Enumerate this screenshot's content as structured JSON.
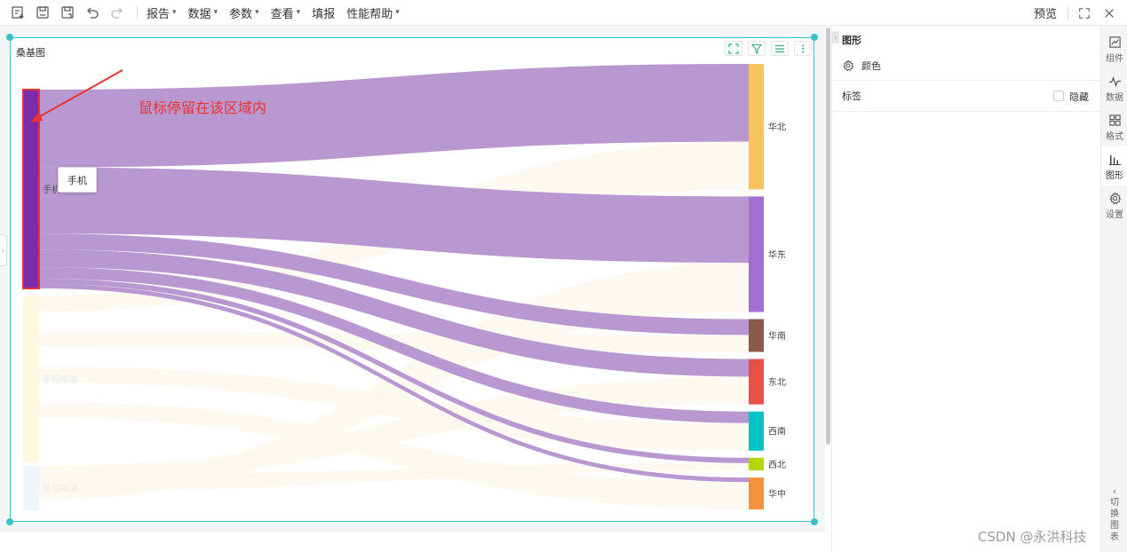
{
  "toolbar": {
    "icons": [
      "new-report-icon",
      "save-icon",
      "save-as-icon",
      "undo-icon",
      "redo-icon"
    ],
    "menus": [
      {
        "label": "报告",
        "has_dropdown": true
      },
      {
        "label": "数据",
        "has_dropdown": true
      },
      {
        "label": "参数",
        "has_dropdown": true
      },
      {
        "label": "查看",
        "has_dropdown": true
      },
      {
        "label": "填报",
        "has_dropdown": false
      },
      {
        "label": "性能帮助",
        "has_dropdown": true
      }
    ],
    "preview_label": "预览",
    "right_icons": [
      "fullscreen-icon",
      "close-icon"
    ]
  },
  "widget": {
    "title": "桑基图",
    "tools": [
      "expand-icon",
      "filter-icon",
      "list-icon",
      "more-icon"
    ],
    "tooltip": "手机",
    "annotation": "鼠标停留在该区域内"
  },
  "chart_data": {
    "type": "sankey",
    "title": "桑基图",
    "sources": [
      {
        "name": "手机",
        "color": "#7b2cad",
        "highlighted": true
      },
      {
        "name": "平板电脑",
        "color": "#fff8e1",
        "highlighted": false
      },
      {
        "name": "移动电源",
        "color": "#eef5fb",
        "highlighted": false
      }
    ],
    "targets": [
      {
        "name": "华北",
        "color": "#f7c35a"
      },
      {
        "name": "华东",
        "color": "#a26fd0"
      },
      {
        "name": "华南",
        "color": "#8b5a48"
      },
      {
        "name": "东北",
        "color": "#e8504a"
      },
      {
        "name": "西南",
        "color": "#00c3c8"
      },
      {
        "name": "西北",
        "color": "#b5d600"
      },
      {
        "name": "华中",
        "color": "#f5913a"
      }
    ],
    "links": [
      {
        "source": "手机",
        "target": "华北",
        "value": 88
      },
      {
        "source": "手机",
        "target": "华东",
        "value": 75
      },
      {
        "source": "手机",
        "target": "华南",
        "value": 18
      },
      {
        "source": "手机",
        "target": "东北",
        "value": 20
      },
      {
        "source": "手机",
        "target": "西南",
        "value": 13
      },
      {
        "source": "手机",
        "target": "西北",
        "value": 6
      },
      {
        "source": "手机",
        "target": "华中",
        "value": 5
      }
    ],
    "highlight_link_color": "#b998d2",
    "faded_link_color": "#fbf8ee"
  },
  "panel": {
    "title": "图形",
    "color_row": "颜色",
    "label_row": "标签",
    "hide_label": "隐藏",
    "hide_checked": false
  },
  "vtabs": [
    {
      "label": "组件",
      "icon": "component-icon",
      "active": false
    },
    {
      "label": "数据",
      "icon": "data-icon",
      "active": false
    },
    {
      "label": "格式",
      "icon": "format-icon",
      "active": false
    },
    {
      "label": "图形",
      "icon": "chart-icon",
      "active": true
    },
    {
      "label": "设置",
      "icon": "settings-icon",
      "active": false
    }
  ],
  "switch_chart": {
    "chars": [
      "切",
      "换",
      "图",
      "表"
    ]
  },
  "watermark": "CSDN @永洪科技"
}
